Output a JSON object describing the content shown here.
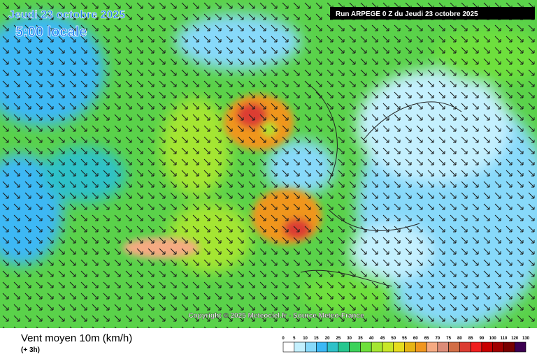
{
  "header": {
    "date": "Jeudi 23 octobre 2025",
    "time": "5:00 locale",
    "run": "Run ARPEGE 0 Z du Jeudi 23 octobre 2025"
  },
  "copyright": "Copyright © 2025 Meteociel.fr - Source Meteo-France",
  "footer": {
    "title": "Vent moyen 10m (km/h)",
    "step": "(+ 3h)"
  },
  "legend": {
    "labels": [
      "0",
      "5",
      "10",
      "15",
      "20",
      "25",
      "30",
      "35",
      "40",
      "45",
      "50",
      "55",
      "60",
      "65",
      "70",
      "75",
      "80",
      "85",
      "90",
      "100",
      "110",
      "120",
      "130"
    ],
    "colors": [
      "#ffffff",
      "#c4f0fe",
      "#87d9fa",
      "#3cb8f5",
      "#2fc1c8",
      "#26c78f",
      "#3cd25a",
      "#6ee03c",
      "#a5e632",
      "#c8e628",
      "#e6dc1e",
      "#e6b414",
      "#f0961e",
      "#f5aa82",
      "#dc8c78",
      "#d26e46",
      "#dc3c32",
      "#f01e1e",
      "#c80000",
      "#a00000",
      "#780000",
      "#3c0050"
    ]
  }
}
